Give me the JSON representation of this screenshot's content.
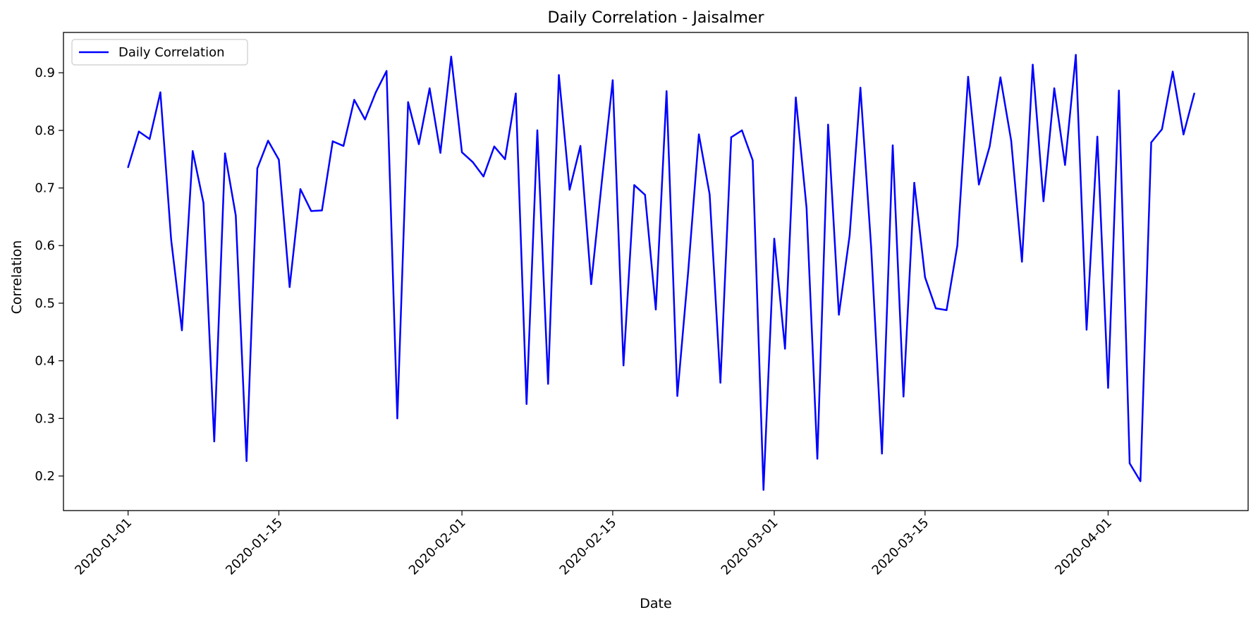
{
  "chart_data": {
    "type": "line",
    "title": "Daily Correlation - Jaisalmer",
    "xlabel": "Date",
    "ylabel": "Correlation",
    "x_start": "2020-01-01",
    "xlim": [
      "2019-12-26",
      "2020-04-14"
    ],
    "ylim": [
      0.14,
      0.97
    ],
    "x_ticks": [
      "2020-01-01",
      "2020-01-15",
      "2020-02-01",
      "2020-02-15",
      "2020-03-01",
      "2020-03-15",
      "2020-04-01"
    ],
    "y_ticks": [
      "0.2",
      "0.3",
      "0.4",
      "0.5",
      "0.6",
      "0.7",
      "0.8",
      "0.9"
    ],
    "grid": false,
    "legend_position": "top-left",
    "series": [
      {
        "name": "Daily Correlation",
        "color": "#0000ff",
        "values": [
          0.736,
          0.798,
          0.785,
          0.866,
          0.61,
          0.453,
          0.764,
          0.674,
          0.26,
          0.76,
          0.652,
          0.226,
          0.734,
          0.782,
          0.749,
          0.528,
          0.698,
          0.66,
          0.661,
          0.781,
          0.773,
          0.853,
          0.819,
          0.866,
          0.903,
          0.3,
          0.849,
          0.776,
          0.873,
          0.761,
          0.928,
          0.762,
          0.745,
          0.72,
          0.772,
          0.75,
          0.864,
          0.325,
          0.8,
          0.36,
          0.896,
          0.697,
          0.773,
          0.533,
          0.713,
          0.887,
          0.392,
          0.705,
          0.688,
          0.489,
          0.868,
          0.339,
          0.553,
          0.793,
          0.689,
          0.362,
          0.788,
          0.8,
          0.748,
          0.176,
          0.612,
          0.421,
          0.857,
          0.665,
          0.23,
          0.81,
          0.48,
          0.618,
          0.874,
          0.596,
          0.239,
          0.774,
          0.338,
          0.709,
          0.545,
          0.491,
          0.488,
          0.6,
          0.893,
          0.706,
          0.772,
          0.892,
          0.782,
          0.572,
          0.914,
          0.677,
          0.873,
          0.74,
          0.931,
          0.454,
          0.789,
          0.353,
          0.869,
          0.222,
          0.191,
          0.779,
          0.802,
          0.902,
          0.793,
          0.864
        ]
      }
    ]
  }
}
